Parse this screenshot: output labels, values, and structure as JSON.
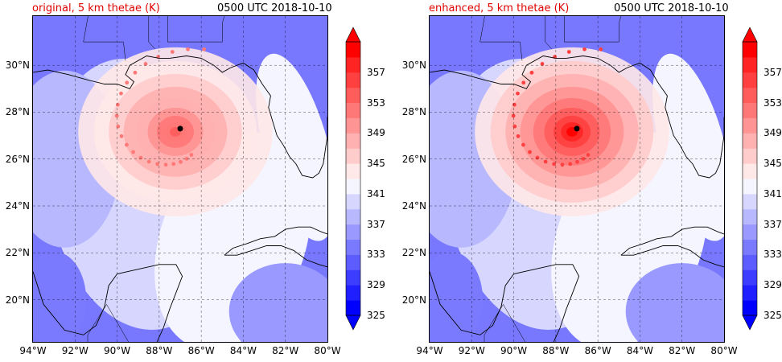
{
  "panels": [
    {
      "title_left": "original, 5 km thetae (K)",
      "title_right": "0500 UTC 2018-10-10",
      "intensity": 0.62
    },
    {
      "title_left": "enhanced, 5 km thetae (K)",
      "title_right": "0500 UTC 2018-10-10",
      "intensity": 1.0
    }
  ],
  "lat_labels": [
    "30°N",
    "28°N",
    "26°N",
    "24°N",
    "22°N",
    "20°N"
  ],
  "lon_labels": [
    "94°W",
    "92°W",
    "90°W",
    "88°W",
    "86°W",
    "84°W",
    "82°W",
    "80°W"
  ],
  "colorbar": {
    "ticks": [
      "357",
      "353",
      "349",
      "345",
      "341",
      "337",
      "333",
      "329",
      "325"
    ],
    "min": 325,
    "max": 359,
    "colors": [
      "#0000ff",
      "#1f1fff",
      "#3d3dff",
      "#5c5cff",
      "#7a7aff",
      "#9999ff",
      "#b8b8ff",
      "#d6d6ff",
      "#f5f5ff",
      "#ffe8e8",
      "#ffcccc",
      "#ffb0b0",
      "#ff9494",
      "#ff7878",
      "#ff5c5c",
      "#ff4040",
      "#ff2424",
      "#ff0000"
    ]
  },
  "storm": {
    "lat": 27.3,
    "lon": -87.0
  }
}
